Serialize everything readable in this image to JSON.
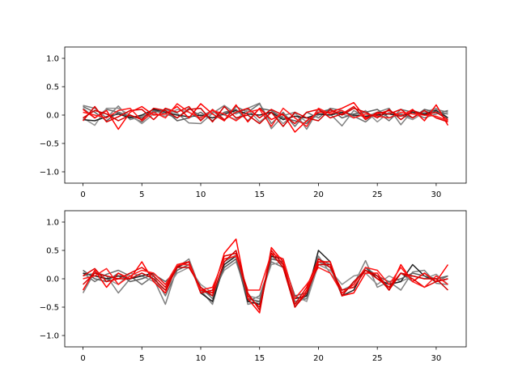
{
  "chart_data": [
    {
      "type": "line",
      "xlim": [
        -1.55,
        32.55
      ],
      "ylim": [
        -1.2,
        1.2
      ],
      "xticks": [
        0,
        5,
        10,
        15,
        20,
        25,
        30
      ],
      "yticks": [
        -1.0,
        -0.5,
        0.0,
        0.5,
        1.0
      ],
      "xtick_labels": [
        "0",
        "5",
        "10",
        "15",
        "20",
        "25",
        "30"
      ],
      "ytick_labels": [
        "−1.0",
        "−0.5",
        "0.0",
        "0.5",
        "1.0"
      ],
      "grid": false,
      "x": [
        0,
        1,
        2,
        3,
        4,
        5,
        6,
        7,
        8,
        9,
        10,
        11,
        12,
        13,
        14,
        15,
        16,
        17,
        18,
        19,
        20,
        21,
        22,
        23,
        24,
        25,
        26,
        27,
        28,
        29,
        30,
        31
      ],
      "series": [
        {
          "color": "#808080",
          "values": [
            0.17,
            0.12,
            -0.05,
            0.16,
            -0.08,
            -0.02,
            0.05,
            0.1,
            0.03,
            -0.14,
            -0.15,
            0.03,
            0.17,
            0.02,
            0.12,
            0.21,
            -0.24,
            -0.01,
            0.05,
            -0.25,
            0.1,
            0.02,
            -0.19,
            0.08,
            -0.03,
            0.05,
            0.12,
            -0.17,
            0.08,
            0.02,
            0.1,
            0.05
          ]
        },
        {
          "color": "#707070",
          "values": [
            0.12,
            -0.05,
            0.1,
            0.05,
            -0.03,
            -0.12,
            0.08,
            0.02,
            -0.05,
            0.12,
            -0.02,
            0.08,
            -0.1,
            0.15,
            0.05,
            0.2,
            -0.15,
            0.05,
            -0.2,
            0.05,
            -0.05,
            0.12,
            0.08,
            -0.02,
            -0.12,
            0.05,
            -0.1,
            0.1,
            0.05,
            -0.05,
            0.02,
            0.08
          ]
        },
        {
          "color": "#909090",
          "values": [
            -0.05,
            -0.18,
            0.12,
            0.12,
            0.0,
            -0.15,
            0.02,
            -0.02,
            0.1,
            0.05,
            -0.08,
            0.05,
            0.0,
            -0.08,
            0.1,
            -0.12,
            0.05,
            -0.15,
            0.03,
            -0.12,
            0.0,
            0.08,
            0.02,
            -0.05,
            0.08,
            -0.12,
            0.05,
            0.0,
            -0.08,
            0.05,
            0.12,
            -0.05
          ]
        },
        {
          "color": "#202020",
          "values": [
            -0.08,
            -0.1,
            -0.03,
            0.02,
            -0.05,
            0.0,
            0.1,
            0.05,
            0.0,
            -0.03,
            0.0,
            -0.05,
            0.02,
            0.08,
            0.02,
            0.0,
            0.05,
            -0.08,
            -0.02,
            -0.05,
            0.02,
            0.0,
            0.05,
            0.0,
            -0.02,
            0.0,
            0.02,
            -0.02,
            0.05,
            0.02,
            0.08,
            -0.05
          ]
        },
        {
          "color": "#606060",
          "values": [
            0.15,
            0.05,
            -0.1,
            0.05,
            -0.02,
            -0.05,
            0.05,
            0.08,
            -0.1,
            -0.05,
            0.05,
            -0.1,
            0.05,
            0.1,
            -0.1,
            0.12,
            0.08,
            -0.05,
            -0.1,
            -0.15,
            0.05,
            0.1,
            -0.05,
            0.02,
            0.05,
            0.1,
            -0.05,
            0.02,
            -0.05,
            0.1,
            0.05,
            0.02
          ]
        },
        {
          "color": "#ff0000",
          "values": [
            0.1,
            -0.05,
            0.08,
            -0.25,
            0.05,
            0.15,
            0.0,
            0.02,
            0.15,
            -0.05,
            0.2,
            0.02,
            -0.1,
            0.18,
            -0.12,
            0.12,
            -0.08,
            0.02,
            -0.3,
            -0.1,
            0.05,
            0.05,
            0.12,
            0.22,
            -0.05,
            0.02,
            0.08,
            -0.02,
            0.1,
            -0.1,
            0.18,
            -0.18
          ]
        },
        {
          "color": "#e00000",
          "values": [
            -0.1,
            0.15,
            -0.12,
            -0.03,
            0.08,
            0.1,
            -0.08,
            0.12,
            0.05,
            0.15,
            -0.1,
            0.1,
            -0.08,
            0.05,
            0.12,
            -0.05,
            0.1,
            0.0,
            -0.15,
            0.05,
            0.1,
            -0.05,
            0.02,
            0.15,
            -0.08,
            0.05,
            0.02,
            0.1,
            -0.05,
            0.08,
            -0.05,
            -0.12
          ]
        },
        {
          "color": "#ff1a1a",
          "values": [
            0.05,
            0.0,
            -0.05,
            0.08,
            0.12,
            -0.1,
            0.05,
            -0.05,
            0.2,
            0.05,
            -0.05,
            0.08,
            0.02,
            -0.1,
            0.05,
            0.1,
            -0.2,
            0.12,
            -0.05,
            -0.2,
            0.12,
            0.02,
            0.08,
            -0.05,
            0.02,
            -0.02,
            -0.05,
            0.05,
            0.02,
            0.0,
            -0.02,
            -0.1
          ]
        },
        {
          "color": "#d00000",
          "values": [
            -0.05,
            0.08,
            0.02,
            -0.1,
            0.0,
            -0.08,
            0.12,
            0.08,
            -0.05,
            0.1,
            0.12,
            -0.12,
            0.15,
            -0.05,
            0.0,
            -0.15,
            0.05,
            -0.2,
            0.05,
            -0.05,
            -0.1,
            0.1,
            0.0,
            0.12,
            0.05,
            -0.05,
            0.1,
            -0.08,
            0.08,
            0.0,
            0.05,
            -0.08
          ]
        }
      ]
    },
    {
      "type": "line",
      "xlim": [
        -1.55,
        32.55
      ],
      "ylim": [
        -1.2,
        1.2
      ],
      "xticks": [
        0,
        5,
        10,
        15,
        20,
        25,
        30
      ],
      "yticks": [
        -1.0,
        -0.5,
        0.0,
        0.5,
        1.0
      ],
      "xtick_labels": [
        "0",
        "5",
        "10",
        "15",
        "20",
        "25",
        "30"
      ],
      "ytick_labels": [
        "−1.0",
        "−0.5",
        "0.0",
        "0.5",
        "1.0"
      ],
      "grid": false,
      "x": [
        0,
        1,
        2,
        3,
        4,
        5,
        6,
        7,
        8,
        9,
        10,
        11,
        12,
        13,
        14,
        15,
        16,
        17,
        18,
        19,
        20,
        21,
        22,
        23,
        24,
        25,
        26,
        27,
        28,
        29,
        30,
        31
      ],
      "series": [
        {
          "color": "#808080",
          "values": [
            -0.25,
            0.12,
            0.05,
            -0.25,
            0.0,
            0.1,
            0.0,
            -0.45,
            0.2,
            0.35,
            -0.2,
            -0.45,
            0.3,
            0.42,
            -0.45,
            -0.4,
            0.4,
            0.25,
            -0.45,
            -0.3,
            0.4,
            0.1,
            -0.2,
            -0.1,
            0.32,
            -0.15,
            -0.05,
            -0.2,
            0.12,
            0.15,
            -0.08,
            -0.1
          ]
        },
        {
          "color": "#707070",
          "values": [
            0.1,
            -0.05,
            0.08,
            0.15,
            0.05,
            -0.1,
            0.05,
            -0.3,
            0.15,
            0.25,
            -0.15,
            -0.35,
            0.2,
            0.35,
            -0.4,
            -0.3,
            0.3,
            0.2,
            -0.4,
            -0.35,
            0.3,
            0.2,
            -0.3,
            -0.05,
            0.15,
            0.05,
            -0.15,
            0.1,
            -0.05,
            0.1,
            -0.05,
            0.05
          ]
        },
        {
          "color": "#909090",
          "values": [
            0.05,
            0.1,
            0.0,
            -0.1,
            0.1,
            0.05,
            -0.05,
            -0.2,
            0.1,
            0.2,
            -0.1,
            -0.25,
            0.15,
            0.3,
            -0.3,
            -0.35,
            0.25,
            0.3,
            -0.3,
            -0.4,
            0.25,
            0.15,
            -0.1,
            0.05,
            0.1,
            -0.1,
            0.05,
            -0.05,
            0.05,
            0.0,
            0.08,
            -0.1
          ]
        },
        {
          "color": "#202020",
          "values": [
            0.1,
            0.05,
            0.0,
            0.05,
            0.0,
            0.05,
            0.1,
            -0.1,
            0.2,
            0.3,
            -0.25,
            -0.4,
            0.25,
            0.4,
            -0.4,
            -0.45,
            0.4,
            0.35,
            -0.35,
            -0.3,
            0.5,
            0.3,
            -0.3,
            -0.2,
            0.2,
            0.0,
            -0.1,
            -0.05,
            0.25,
            0.05,
            -0.05,
            0.0
          ]
        },
        {
          "color": "#606060",
          "values": [
            0.15,
            0.0,
            -0.05,
            0.1,
            -0.05,
            0.0,
            0.08,
            -0.05,
            0.15,
            0.25,
            -0.2,
            -0.3,
            0.2,
            0.35,
            -0.35,
            -0.4,
            0.35,
            0.3,
            -0.3,
            -0.25,
            0.35,
            0.25,
            -0.25,
            -0.1,
            0.2,
            0.05,
            -0.05,
            0.0,
            0.1,
            0.05,
            0.0,
            0.05
          ]
        },
        {
          "color": "#ff0000",
          "values": [
            -0.2,
            0.15,
            -0.15,
            0.1,
            0.0,
            0.3,
            -0.05,
            -0.25,
            0.25,
            0.3,
            -0.2,
            -0.25,
            0.45,
            0.7,
            -0.35,
            -0.6,
            0.55,
            0.3,
            -0.5,
            -0.2,
            0.3,
            0.3,
            -0.3,
            -0.25,
            0.1,
            0.1,
            -0.2,
            0.25,
            -0.05,
            0.1,
            -0.05,
            0.25
          ]
        },
        {
          "color": "#e00000",
          "values": [
            0.05,
            0.18,
            -0.05,
            0.0,
            0.1,
            0.2,
            0.05,
            -0.15,
            0.22,
            0.3,
            -0.25,
            -0.2,
            0.4,
            0.45,
            -0.3,
            -0.5,
            0.5,
            0.25,
            -0.45,
            -0.15,
            0.35,
            0.2,
            -0.2,
            -0.15,
            0.15,
            0.0,
            -0.15,
            0.1,
            0.0,
            -0.15,
            -0.05,
            0.0
          ]
        },
        {
          "color": "#ff1a1a",
          "values": [
            0.0,
            0.05,
            0.18,
            -0.1,
            0.05,
            0.15,
            0.1,
            -0.1,
            0.25,
            0.25,
            -0.2,
            -0.15,
            0.35,
            0.4,
            -0.2,
            -0.2,
            0.45,
            0.35,
            -0.35,
            -0.1,
            0.2,
            0.1,
            -0.25,
            -0.1,
            0.2,
            0.15,
            -0.1,
            0.2,
            -0.05,
            -0.15,
            0.05,
            -0.1
          ]
        },
        {
          "color": "#d00000",
          "values": [
            -0.1,
            0.1,
            0.05,
            0.0,
            0.0,
            0.1,
            0.0,
            -0.2,
            0.2,
            0.2,
            -0.15,
            -0.3,
            0.3,
            0.5,
            -0.25,
            -0.55,
            0.45,
            0.2,
            -0.5,
            -0.25,
            0.25,
            0.25,
            -0.3,
            -0.05,
            0.15,
            0.05,
            -0.2,
            0.1,
            0.05,
            0.0,
            0.0,
            -0.2
          ]
        }
      ]
    }
  ]
}
